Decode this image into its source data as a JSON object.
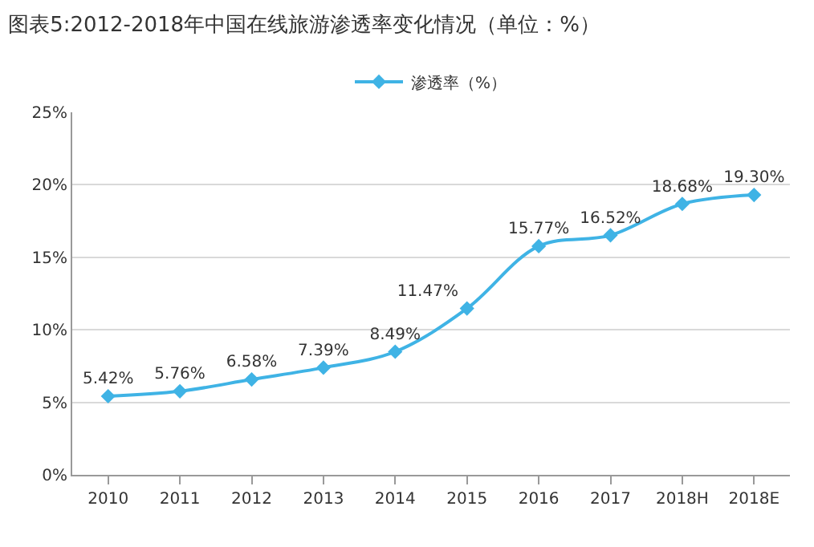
{
  "chart_data": {
    "type": "line",
    "title": "图表5:2012-2018年中国在线旅游渗透率变化情况（单位：%）",
    "categories": [
      "2010",
      "2011",
      "2012",
      "2013",
      "2014",
      "2015",
      "2016",
      "2017",
      "2018H",
      "2018E"
    ],
    "series": [
      {
        "name": "渗透率（%）",
        "color": "#3fb3e5",
        "values": [
          5.42,
          5.76,
          6.58,
          7.39,
          8.49,
          11.47,
          15.77,
          16.52,
          18.68,
          19.3
        ],
        "value_labels": [
          "5.42%",
          "5.76%",
          "6.58%",
          "7.39%",
          "8.49%",
          "11.47%",
          "15.77%",
          "16.52%",
          "18.68%",
          "19.30%"
        ]
      }
    ],
    "ylim": [
      0,
      25
    ],
    "yticks": [
      {
        "value": 0,
        "label": "0%"
      },
      {
        "value": 5,
        "label": "5%"
      },
      {
        "value": 10,
        "label": "10%"
      },
      {
        "value": 15,
        "label": "15%"
      },
      {
        "value": 20,
        "label": "20%"
      },
      {
        "value": 25,
        "label": "25%"
      }
    ],
    "grid": "y",
    "legend": "top",
    "marker": "diamond",
    "line_style": "solid"
  }
}
